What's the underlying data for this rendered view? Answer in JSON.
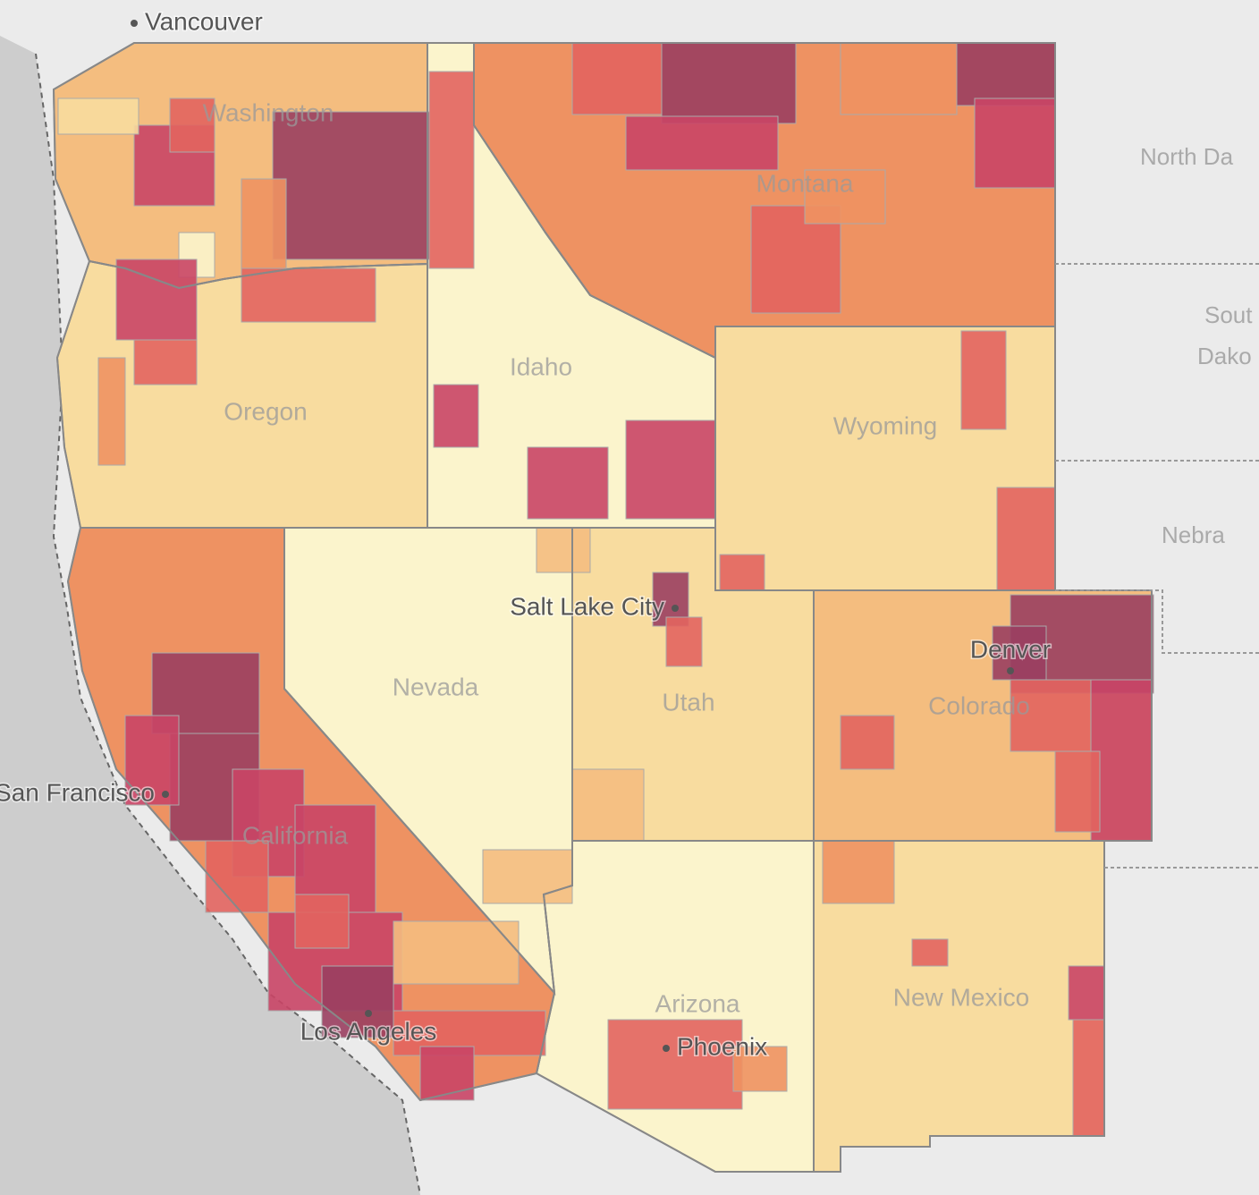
{
  "map": {
    "cities": [
      "Vancouver",
      "Salt Lake City",
      "Denver",
      "San Francisco",
      "Los Angeles",
      "Phoenix"
    ],
    "states": [
      "Washington",
      "Montana",
      "Oregon",
      "Idaho",
      "Wyoming",
      "Nevada",
      "Utah",
      "Colorado",
      "California",
      "Arizona",
      "New Mexico"
    ],
    "neighbors": [
      "North Da",
      "Sout",
      "Dako",
      "Nebra"
    ]
  }
}
